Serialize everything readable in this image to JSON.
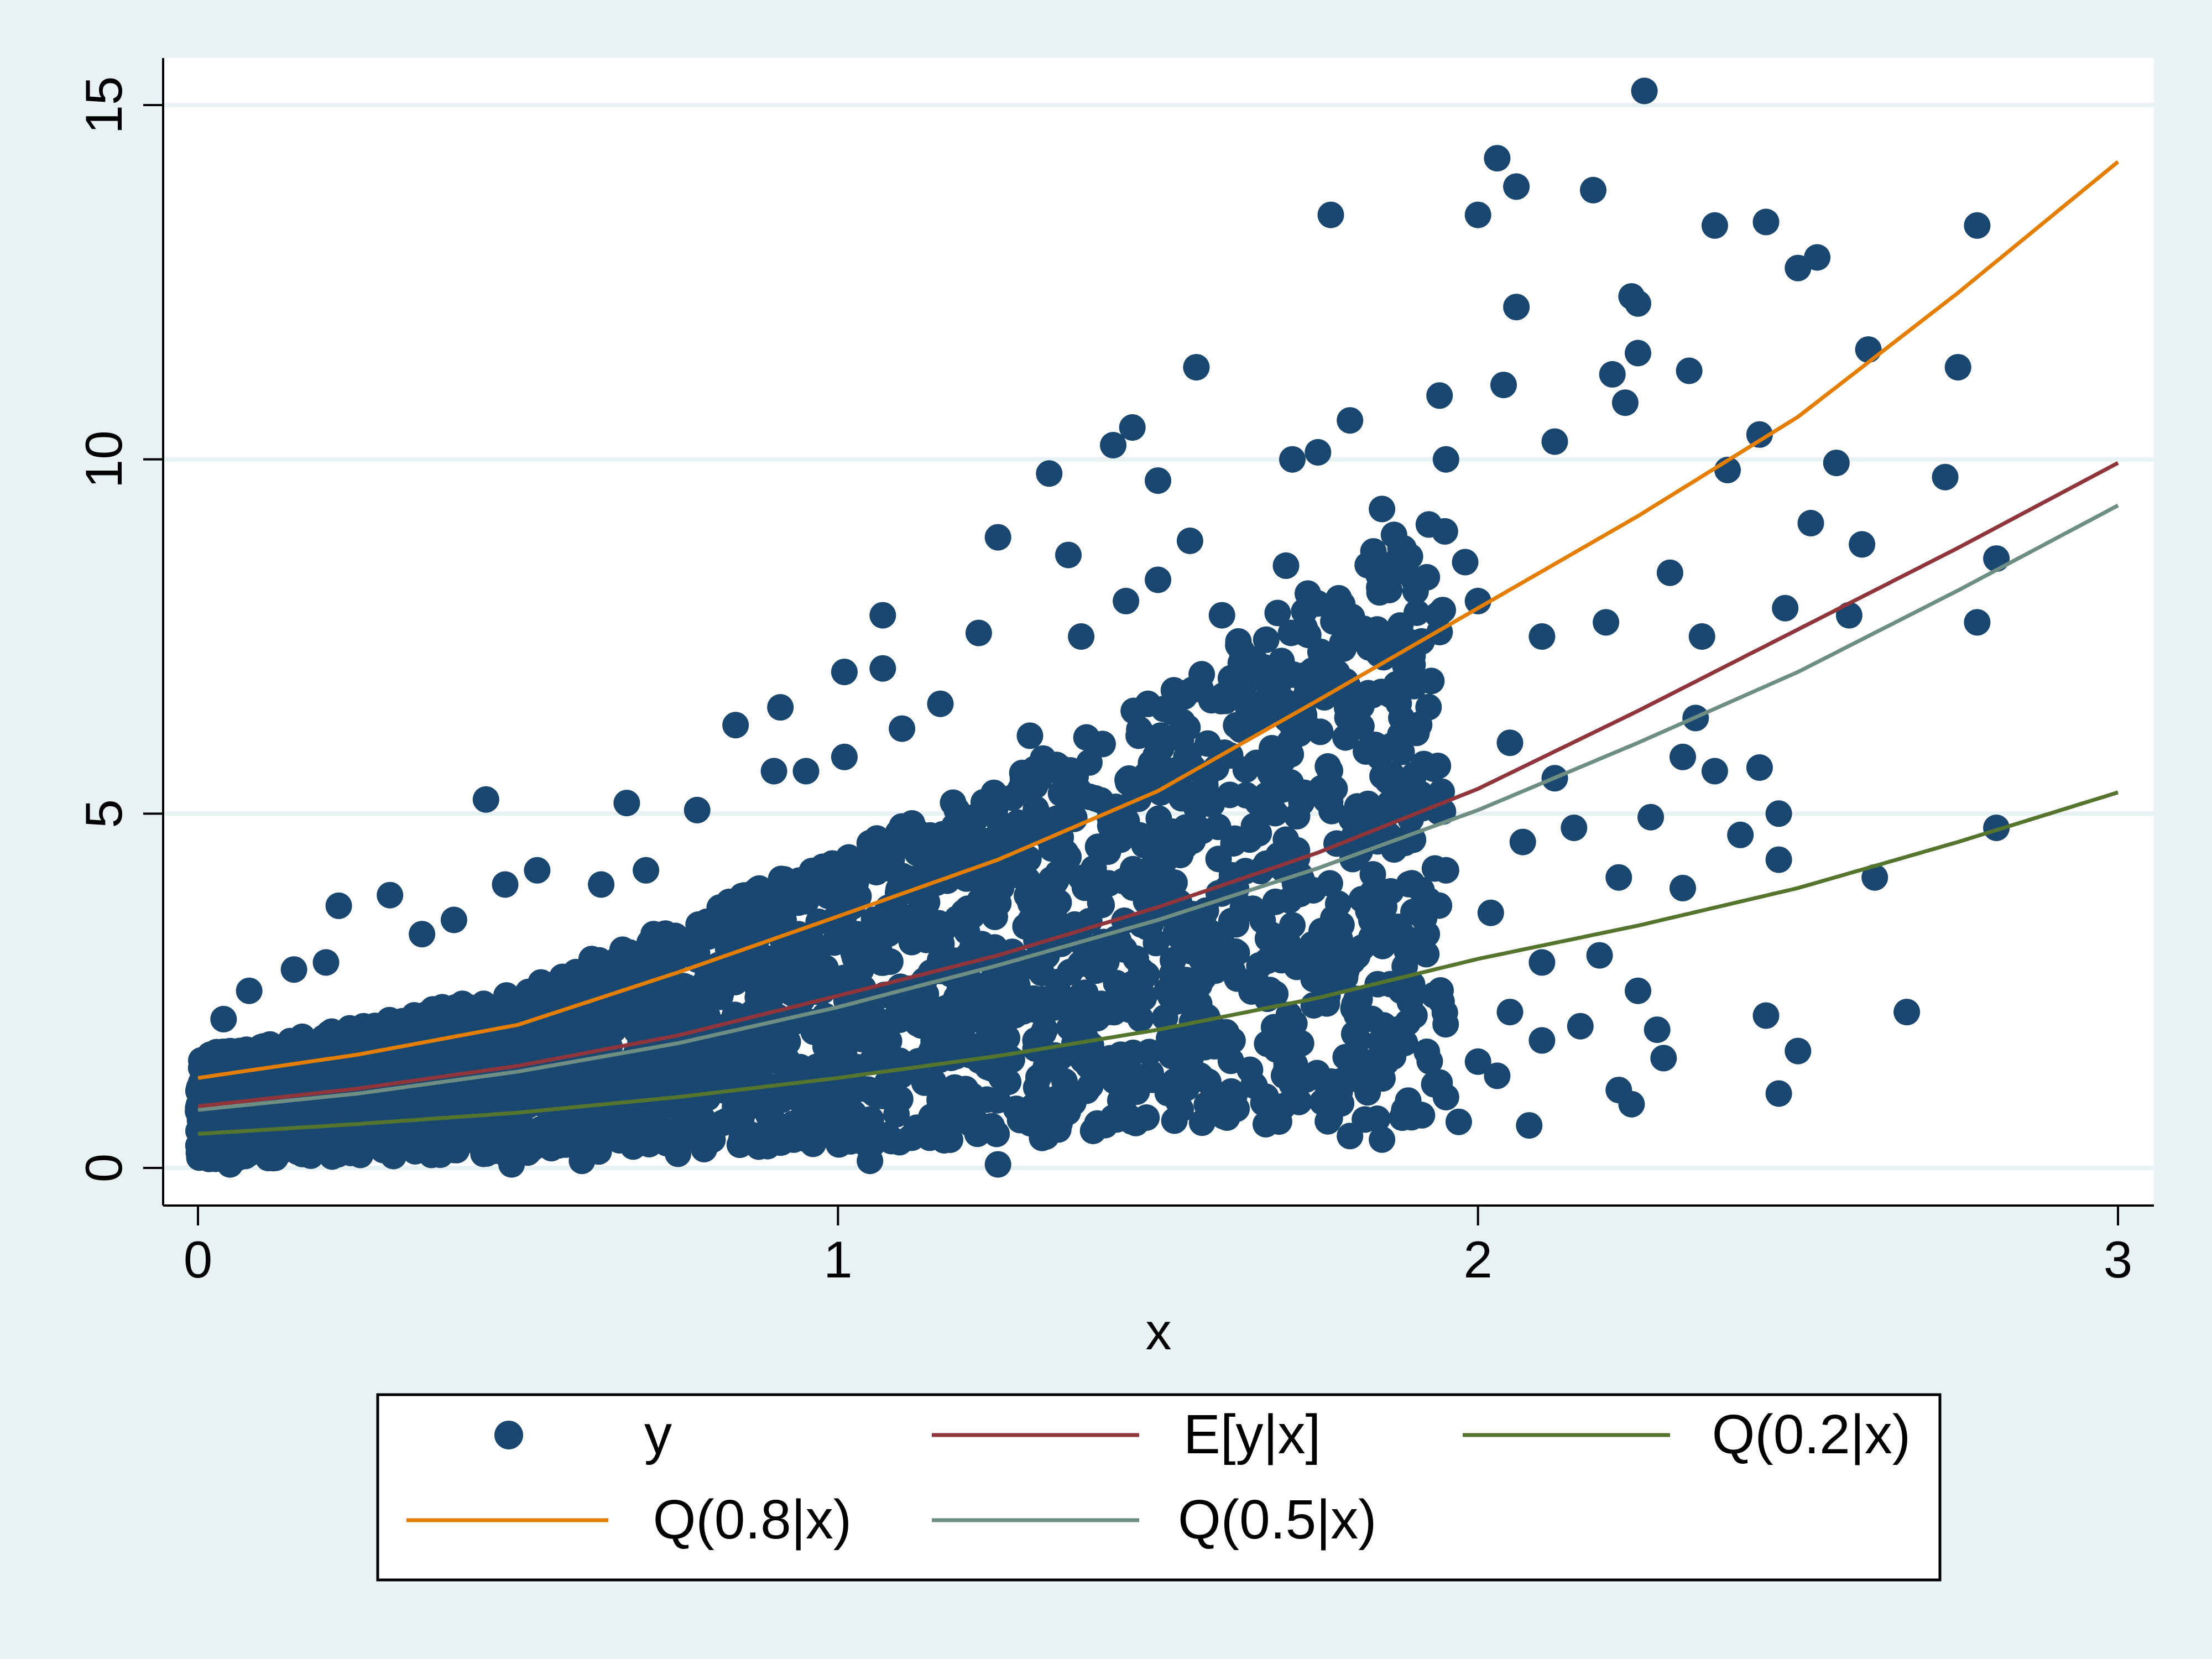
{
  "chart_data": {
    "type": "scatter",
    "title": "",
    "xlabel": "x",
    "ylabel": "",
    "xlim": [
      -0.05,
      3.05
    ],
    "ylim": [
      -0.5,
      15.7
    ],
    "x_ticks": [
      0,
      1,
      2,
      3
    ],
    "y_ticks": [
      0,
      5,
      10,
      15
    ],
    "x_tick_labels": [
      "0",
      "1",
      "2",
      "3"
    ],
    "y_tick_labels": [
      "0",
      "5",
      "10",
      "15"
    ],
    "grid": "horizontal",
    "legend_position": "bottom",
    "colors": {
      "plot_background": "#ffffff",
      "outer_background": "#e8f1f3",
      "gridline": "#e8f1f3",
      "scatter": "#1a476f",
      "q80": "#e37e00",
      "mean": "#90353b",
      "q50": "#6e8e84",
      "q20": "#55752f"
    },
    "scatter": {
      "name": "y",
      "approx_n": 5000,
      "points": [
        [
          2.26,
          15.2
        ],
        [
          2.03,
          14.25
        ],
        [
          2.06,
          13.85
        ],
        [
          2.18,
          13.8
        ],
        [
          1.77,
          13.45
        ],
        [
          2.0,
          13.45
        ],
        [
          2.37,
          13.3
        ],
        [
          2.45,
          13.35
        ],
        [
          2.78,
          13.3
        ],
        [
          2.53,
          12.85
        ],
        [
          2.5,
          12.7
        ],
        [
          2.24,
          12.3
        ],
        [
          2.06,
          12.15
        ],
        [
          2.25,
          12.2
        ],
        [
          2.25,
          11.5
        ],
        [
          1.56,
          11.3
        ],
        [
          2.21,
          11.2
        ],
        [
          2.33,
          11.25
        ],
        [
          2.75,
          11.3
        ],
        [
          2.61,
          11.55
        ],
        [
          2.04,
          11.05
        ],
        [
          1.94,
          10.9
        ],
        [
          2.23,
          10.8
        ],
        [
          1.8,
          10.55
        ],
        [
          1.46,
          10.45
        ],
        [
          1.43,
          10.2
        ],
        [
          2.12,
          10.25
        ],
        [
          2.44,
          10.35
        ],
        [
          1.71,
          10.0
        ],
        [
          1.75,
          10.1
        ],
        [
          1.95,
          10.0
        ],
        [
          1.33,
          9.8
        ],
        [
          1.5,
          9.7
        ],
        [
          2.56,
          9.95
        ],
        [
          2.73,
          9.75
        ],
        [
          2.39,
          9.85
        ],
        [
          1.25,
          8.9
        ],
        [
          1.55,
          8.85
        ],
        [
          1.36,
          8.65
        ],
        [
          1.98,
          8.55
        ],
        [
          2.52,
          9.1
        ],
        [
          2.6,
          8.8
        ],
        [
          2.81,
          8.6
        ],
        [
          2.78,
          7.7
        ],
        [
          2.58,
          7.8
        ],
        [
          1.07,
          7.8
        ],
        [
          1.22,
          7.55
        ],
        [
          2.48,
          7.9
        ],
        [
          0.84,
          6.25
        ],
        [
          0.91,
          6.5
        ],
        [
          1.01,
          7.0
        ],
        [
          1.07,
          7.05
        ],
        [
          0.45,
          5.2
        ],
        [
          0.67,
          5.15
        ],
        [
          0.22,
          3.7
        ],
        [
          0.3,
          3.85
        ],
        [
          0.48,
          4.0
        ],
        [
          0.53,
          4.2
        ],
        [
          2.27,
          4.95
        ],
        [
          2.47,
          5.0
        ],
        [
          2.44,
          5.65
        ],
        [
          2.32,
          5.8
        ],
        [
          2.37,
          5.6
        ],
        [
          2.34,
          6.35
        ],
        [
          2.41,
          4.7
        ],
        [
          2.62,
          4.1
        ],
        [
          2.32,
          3.95
        ],
        [
          2.47,
          4.35
        ],
        [
          2.67,
          2.2
        ],
        [
          2.45,
          2.15
        ],
        [
          2.5,
          1.65
        ],
        [
          2.47,
          1.05
        ],
        [
          2.22,
          1.1
        ],
        [
          2.24,
          0.9
        ],
        [
          2.08,
          0.6
        ],
        [
          2.29,
          1.55
        ],
        [
          2.28,
          1.95
        ],
        [
          1.85,
          0.4
        ],
        [
          1.8,
          0.45
        ],
        [
          1.91,
          0.75
        ],
        [
          1.97,
          0.65
        ],
        [
          2.16,
          2.0
        ],
        [
          2.25,
          2.5
        ],
        [
          2.81,
          4.8
        ],
        [
          0.01,
          0.3
        ],
        [
          0.03,
          0.2
        ],
        [
          0.02,
          1.6
        ],
        [
          0.04,
          2.1
        ],
        [
          0.08,
          2.5
        ],
        [
          0.05,
          0.05
        ],
        [
          0.15,
          2.8
        ],
        [
          0.2,
          2.9
        ],
        [
          0.35,
          3.3
        ],
        [
          0.4,
          3.5
        ],
        [
          0.6,
          0.1
        ],
        [
          0.75,
          0.2
        ],
        [
          1.05,
          0.1
        ],
        [
          1.25,
          0.05
        ],
        [
          0.49,
          0.05
        ],
        [
          0.63,
          4.0
        ],
        [
          0.7,
          4.2
        ],
        [
          0.78,
          5.05
        ],
        [
          0.9,
          5.6
        ],
        [
          0.95,
          5.6
        ],
        [
          1.01,
          5.8
        ],
        [
          1.1,
          6.2
        ],
        [
          1.16,
          6.55
        ],
        [
          1.3,
          6.1
        ],
        [
          1.38,
          7.5
        ],
        [
          1.45,
          8.0
        ],
        [
          1.5,
          8.3
        ],
        [
          1.6,
          7.8
        ],
        [
          1.7,
          8.5
        ],
        [
          1.85,
          9.3
        ],
        [
          1.9,
          8.3
        ],
        [
          2.0,
          8.0
        ],
        [
          2.1,
          7.5
        ],
        [
          2.2,
          7.7
        ],
        [
          2.3,
          8.4
        ],
        [
          2.35,
          7.5
        ],
        [
          1.9,
          6.8
        ],
        [
          2.05,
          6.0
        ],
        [
          2.12,
          5.5
        ],
        [
          2.15,
          4.8
        ],
        [
          2.22,
          4.1
        ],
        [
          2.19,
          3.0
        ],
        [
          2.1,
          2.9
        ],
        [
          2.02,
          3.6
        ],
        [
          2.07,
          4.6
        ],
        [
          1.95,
          4.2
        ],
        [
          1.92,
          3.3
        ],
        [
          2.05,
          2.2
        ],
        [
          2.1,
          1.8
        ],
        [
          2.03,
          1.3
        ],
        [
          2.0,
          1.5
        ],
        [
          1.95,
          1.0
        ],
        [
          1.88,
          2.5
        ],
        [
          1.85,
          3.9
        ]
      ],
      "dense_band": {
        "description": "thousands of overlapping points",
        "x_range": [
          0,
          1.9
        ],
        "note": "points concentrated between the 0.2 and 0.8 quantile curves with spread growing in x"
      }
    },
    "series": [
      {
        "name": "Q(0.8|x)",
        "type": "line",
        "x": [
          0,
          0.25,
          0.5,
          0.75,
          1.0,
          1.25,
          1.5,
          1.75,
          2.0,
          2.25,
          2.5,
          2.75,
          3.0
        ],
        "values": [
          1.27,
          1.6,
          2.02,
          2.76,
          3.55,
          4.35,
          5.32,
          6.6,
          7.9,
          9.2,
          10.6,
          12.35,
          14.2
        ]
      },
      {
        "name": "E[y|x]",
        "type": "line",
        "x": [
          0,
          0.25,
          0.5,
          0.75,
          1.0,
          1.25,
          1.5,
          1.75,
          2.0,
          2.25,
          2.5,
          2.75,
          3.0
        ],
        "values": [
          0.87,
          1.12,
          1.44,
          1.87,
          2.43,
          3.0,
          3.68,
          4.45,
          5.35,
          6.45,
          7.6,
          8.75,
          9.95
        ]
      },
      {
        "name": "Q(0.5|x)",
        "type": "line",
        "x": [
          0,
          0.25,
          0.5,
          0.75,
          1.0,
          1.25,
          1.5,
          1.75,
          2.0,
          2.25,
          2.5,
          2.75,
          3.0
        ],
        "values": [
          0.82,
          1.05,
          1.36,
          1.76,
          2.27,
          2.86,
          3.5,
          4.23,
          5.05,
          6.0,
          7.0,
          8.15,
          9.35
        ]
      },
      {
        "name": "Q(0.2|x)",
        "type": "line",
        "x": [
          0,
          0.25,
          0.5,
          0.75,
          1.0,
          1.25,
          1.5,
          1.75,
          2.0,
          2.25,
          2.5,
          2.75,
          3.0
        ],
        "values": [
          0.48,
          0.62,
          0.78,
          1.0,
          1.27,
          1.58,
          1.95,
          2.4,
          2.95,
          3.42,
          3.95,
          4.6,
          5.3
        ]
      }
    ],
    "legend": [
      {
        "label": "y",
        "kind": "marker",
        "color": "#1a476f"
      },
      {
        "label": "E[y|x]",
        "kind": "line",
        "color": "#90353b"
      },
      {
        "label": "Q(0.2|x)",
        "kind": "line",
        "color": "#55752f"
      },
      {
        "label": "Q(0.8|x)",
        "kind": "line",
        "color": "#e37e00"
      },
      {
        "label": "Q(0.5|x)",
        "kind": "line",
        "color": "#6e8e84"
      }
    ]
  }
}
